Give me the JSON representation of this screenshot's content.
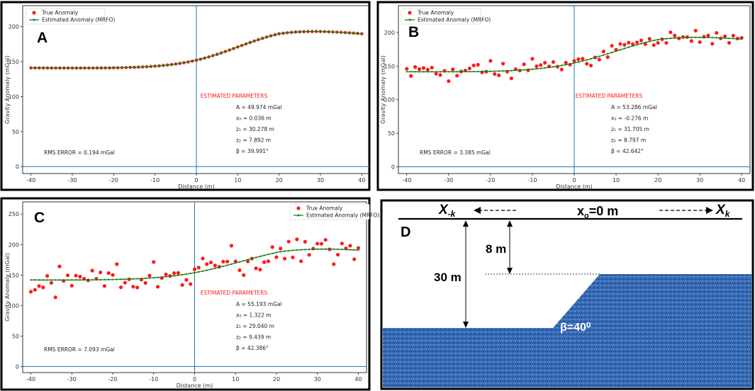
{
  "chart_data": [
    {
      "type": "scatter",
      "panel_label": "A",
      "xlabel": "Distance (m)",
      "ylabel": "Gravity Anomaly (mGal)",
      "xlim": [
        -42,
        42
      ],
      "ylim": [
        -10,
        230
      ],
      "xticks": [
        -40,
        -30,
        -20,
        -10,
        0,
        10,
        20,
        30,
        40
      ],
      "yticks": [
        0,
        50,
        100,
        150,
        200
      ],
      "legend": [
        "True Anomaly",
        "Estimated Anomaly (MRFO)"
      ],
      "legend_position": "top-left",
      "params_title": "ESTIMATED PARAMETERS",
      "params": [
        "A = 49.974 mGal",
        "x₀ = 0.036 m",
        "z₁ = 30.278 m",
        "z₂ = 7.892 m",
        "β = 39.991°"
      ],
      "rms": "RMS ERROR = 0.194 mGal",
      "model": {
        "A": 49.974,
        "x0": 0.036,
        "z1": 30.278,
        "z2": 7.892,
        "beta": 39.991
      },
      "noise": 0
    },
    {
      "type": "scatter",
      "panel_label": "B",
      "xlabel": "Distance (m)",
      "ylabel": "Gravity Anomaly (mGal)",
      "xlim": [
        -42,
        42
      ],
      "ylim": [
        -10,
        240
      ],
      "xticks": [
        -40,
        -30,
        -20,
        -10,
        0,
        10,
        20,
        30,
        40
      ],
      "yticks": [
        0,
        50,
        100,
        150,
        200
      ],
      "legend": [
        "True Anomaly",
        "Estimated Anomaly (MRFO)"
      ],
      "legend_position": "top-left",
      "params_title": "ESTIMATED PARAMETERS",
      "params": [
        "A = 53.286 mGal",
        "x₀ = -0.276 m",
        "z₁ = 31.705 m",
        "z₂ = 8.797 m",
        "β = 42.642°"
      ],
      "rms": "RMS ERROR = 3.385 mGal",
      "model": {
        "A": 53.286,
        "x0": -0.276,
        "z1": 31.705,
        "z2": 8.797,
        "beta": 42.642
      },
      "noise": 14
    },
    {
      "type": "scatter",
      "panel_label": "C",
      "xlabel": "Distance (m)",
      "ylabel": "Gravity Anomaly (mGal)",
      "xlim": [
        -42,
        42
      ],
      "ylim": [
        -10,
        270
      ],
      "xticks": [
        -40,
        -30,
        -20,
        -10,
        0,
        10,
        20,
        30,
        40
      ],
      "yticks": [
        0,
        50,
        100,
        150,
        200,
        250
      ],
      "legend": [
        "True Anomaly",
        "Estimated Anomaly (MRFO)"
      ],
      "legend_position": "top-right",
      "params_title": "ESTIMATED PARAMETERS",
      "params": [
        "A = 55.193 mGal",
        "x₀ = 1.322 m",
        "z₁ = 29.040 m",
        "z₂ = 9.439 m",
        "β = 42.386°"
      ],
      "rms": "RMS ERROR = 7.093 mGal",
      "model": {
        "A": 55.193,
        "x0": 1.322,
        "z1": 29.04,
        "z2": 9.439,
        "beta": 42.386
      },
      "noise": 26
    }
  ],
  "diagram": {
    "panel_label": "D",
    "left_arrow_label": "X",
    "left_arrow_sub": "-k",
    "center_label": "x",
    "center_sub": "o",
    "center_suffix": "=0 m",
    "right_arrow_label": "X",
    "right_arrow_sub": "k",
    "depth_top": "8 m",
    "depth_bottom": "30 m",
    "angle_label": "β=40⁰"
  },
  "colors": {
    "true": "#ff1a1a",
    "estimated": "#1a7f1a",
    "axis_line": "#1f77b4",
    "water": "#2f64b0"
  }
}
